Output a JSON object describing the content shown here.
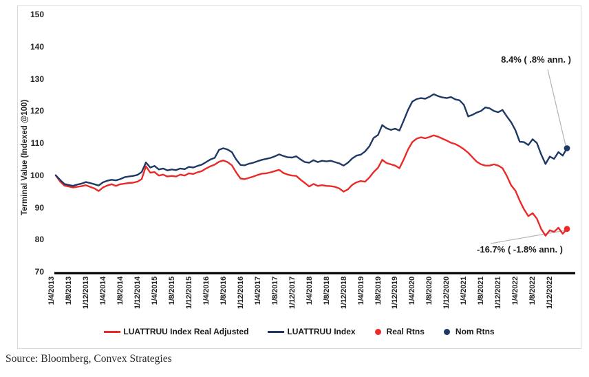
{
  "chart_data": {
    "type": "line",
    "title": "",
    "ylabel": "Terminal Value (Indexed @100)",
    "xlabel": "",
    "ylim": [
      70,
      150
    ],
    "yticks": [
      150,
      140,
      130,
      120,
      110,
      100,
      90,
      80,
      70
    ],
    "x_tick_labels": [
      "1/4/2013",
      "1/8/2013",
      "1/12/2013",
      "1/4/2014",
      "1/8/2014",
      "1/12/2014",
      "1/4/2015",
      "1/8/2015",
      "1/12/2015",
      "1/4/2016",
      "1/8/2016",
      "1/12/2016",
      "1/4/2017",
      "1/8/2017",
      "1/12/2017",
      "1/4/2018",
      "1/8/2018",
      "1/12/2018",
      "1/4/2019",
      "1/8/2019",
      "1/12/2019",
      "1/4/2020",
      "1/8/2020",
      "1/12/2020",
      "1/4/2021",
      "1/8/2021",
      "1/12/2021",
      "1/4/2022",
      "1/8/2022",
      "1/12/2022"
    ],
    "x_tick_interval_points": 4,
    "points_per_series": 120,
    "grid": false,
    "legend_position": "bottom",
    "series": [
      {
        "name": "LUATTRUU Index Real Adjusted",
        "color": "#ea2a28",
        "values": [
          100,
          98.1,
          96.8,
          96.5,
          96.2,
          96.4,
          96.6,
          96.9,
          96.4,
          95.9,
          95.1,
          96.2,
          96.8,
          97.2,
          96.7,
          97.2,
          97.4,
          97.6,
          97.7,
          98,
          98.8,
          102.8,
          100.8,
          101,
          99.9,
          100.2,
          99.6,
          99.8,
          99.6,
          100.2,
          99.9,
          100.6,
          100.4,
          100.9,
          101.3,
          102.1,
          102.8,
          103.3,
          104.2,
          104.6,
          104.1,
          103.1,
          100.9,
          99,
          98.8,
          99.2,
          99.6,
          100.1,
          100.5,
          100.6,
          100.9,
          101.3,
          101.7,
          100.7,
          100.2,
          99.9,
          99.8,
          98.6,
          97.6,
          96.5,
          97.3,
          96.7,
          96.9,
          96.7,
          96.6,
          96.4,
          95.9,
          94.9,
          95.6,
          97,
          97.8,
          98.2,
          98,
          99.3,
          101,
          102.3,
          104.8,
          103.8,
          103.4,
          103,
          102.2,
          104.9,
          108,
          110.3,
          111.4,
          111.8,
          111.5,
          111.9,
          112.4,
          112,
          111.4,
          110.8,
          110.1,
          109.7,
          109,
          108.1,
          107,
          105.6,
          104.2,
          103.4,
          103,
          103,
          103.4,
          103,
          102.2,
          99.8,
          96.9,
          95.2,
          92.1,
          89.4,
          87.3,
          88.2,
          86.5,
          83.3,
          81.2,
          82.9,
          82.4,
          83.7,
          81.8,
          83.3
        ]
      },
      {
        "name": "LUATTRUU Index",
        "color": "#1f3864",
        "values": [
          100,
          98.6,
          97.3,
          97,
          96.7,
          97.1,
          97.4,
          97.9,
          97.6,
          97.2,
          96.8,
          97.8,
          98.3,
          98.6,
          98.4,
          98.8,
          99.4,
          99.6,
          99.8,
          100.1,
          101,
          104,
          102.4,
          102.9,
          101.8,
          102.1,
          101.5,
          101.8,
          101.6,
          102.1,
          101.9,
          102.6,
          102.4,
          102.9,
          103.3,
          104.1,
          104.9,
          105.4,
          107.9,
          108.4,
          108,
          107.2,
          104.9,
          103.2,
          103.1,
          103.6,
          103.9,
          104.4,
          104.8,
          105.1,
          105.4,
          105.9,
          106.5,
          106,
          105.6,
          105.5,
          105.9,
          104.9,
          104.1,
          103.9,
          104.7,
          104.1,
          104.5,
          104.3,
          104.5,
          104.1,
          103.7,
          103,
          103.9,
          105.2,
          106.1,
          106.4,
          107.4,
          109,
          111.6,
          112.5,
          115.6,
          114.6,
          114.1,
          114.5,
          113.9,
          117,
          120.3,
          122.9,
          123.7,
          124,
          123.8,
          124.4,
          125.2,
          124.6,
          124.2,
          124,
          124.3,
          123.6,
          123.3,
          121.9,
          118.3,
          118.8,
          119.5,
          120,
          121.1,
          120.8,
          120,
          119.6,
          120.3,
          118.3,
          116.5,
          114,
          110.4,
          110.3,
          109.4,
          111.2,
          110,
          106.5,
          103.5,
          105.8,
          105.1,
          107.2,
          106.1,
          108.4
        ]
      }
    ],
    "end_markers": [
      {
        "name": "Real Rtns",
        "color": "#ea2a28",
        "value": 83.3
      },
      {
        "name": "Nom Rtns",
        "color": "#1f3864",
        "value": 108.4
      }
    ],
    "annotations": [
      {
        "text": "8.4% ( .8% ann. )",
        "series": "LUATTRUU Index"
      },
      {
        "text": "-16.7% ( -1.8% ann. )",
        "series": "LUATTRUU Index Real Adjusted"
      }
    ]
  },
  "legend": {
    "items": [
      {
        "label": "LUATTRUU Index Real Adjusted",
        "marker": "line",
        "color": "#ea2a28"
      },
      {
        "label": "LUATTRUU Index",
        "marker": "line",
        "color": "#1f3864"
      },
      {
        "label": "Real Rtns",
        "marker": "dot",
        "color": "#ea2a28"
      },
      {
        "label": "Nom Rtns",
        "marker": "dot",
        "color": "#1f3864"
      }
    ]
  },
  "annotations": {
    "nominal": "8.4% ( .8% ann. )",
    "real": "-16.7% ( -1.8% ann. )"
  },
  "source": "Source: Bloomberg, Convex Strategies"
}
